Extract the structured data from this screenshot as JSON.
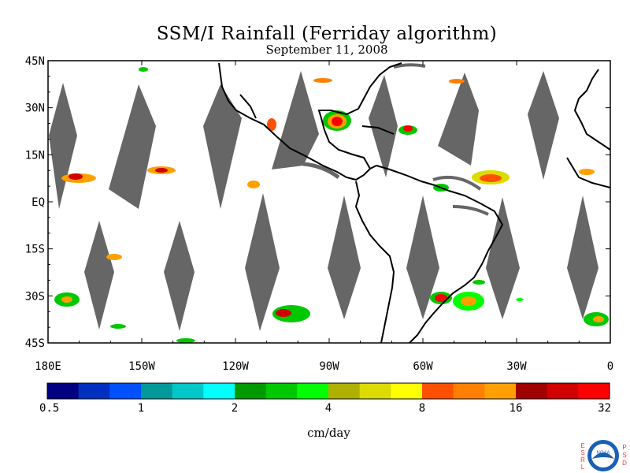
{
  "title": "SSM/I Rainfall (Ferriday algorithm)",
  "subtitle": "September 11, 2008",
  "units_label": "cm/day",
  "map": {
    "lon_range": [
      -180,
      0
    ],
    "lat_range": [
      -45,
      45
    ],
    "lat_ticks": [
      {
        "value": 45,
        "label": "45N"
      },
      {
        "value": 30,
        "label": "30N"
      },
      {
        "value": 15,
        "label": "15N"
      },
      {
        "value": 0,
        "label": "EQ"
      },
      {
        "value": -15,
        "label": "15S"
      },
      {
        "value": -30,
        "label": "30S"
      },
      {
        "value": -45,
        "label": "45S"
      }
    ],
    "lon_ticks": [
      {
        "value": -180,
        "label": "180E"
      },
      {
        "value": -150,
        "label": "150W"
      },
      {
        "value": -120,
        "label": "120W"
      },
      {
        "value": -90,
        "label": "90W"
      },
      {
        "value": -60,
        "label": "60W"
      },
      {
        "value": -30,
        "label": "30W"
      },
      {
        "value": 0,
        "label": "0"
      }
    ],
    "no_data_color": "#666666",
    "coast_color": "#000000"
  },
  "colorbar": {
    "colors": [
      "#000080",
      "#0030c0",
      "#0050ff",
      "#009999",
      "#00c8c8",
      "#00ffff",
      "#009900",
      "#00c800",
      "#00ff00",
      "#b0b000",
      "#dcdc00",
      "#ffff00",
      "#ff5000",
      "#ff8000",
      "#ffa000",
      "#a00000",
      "#d00000",
      "#ff0000"
    ],
    "labels": [
      "0.5",
      "1",
      "2",
      "4",
      "8",
      "16",
      "32"
    ]
  },
  "logo": {
    "text": "NOAA",
    "left_letters": [
      "E",
      "S",
      "R",
      "L"
    ],
    "right_letters": [
      "P",
      "S",
      "D"
    ],
    "ring_color": "#1a5fb4"
  }
}
